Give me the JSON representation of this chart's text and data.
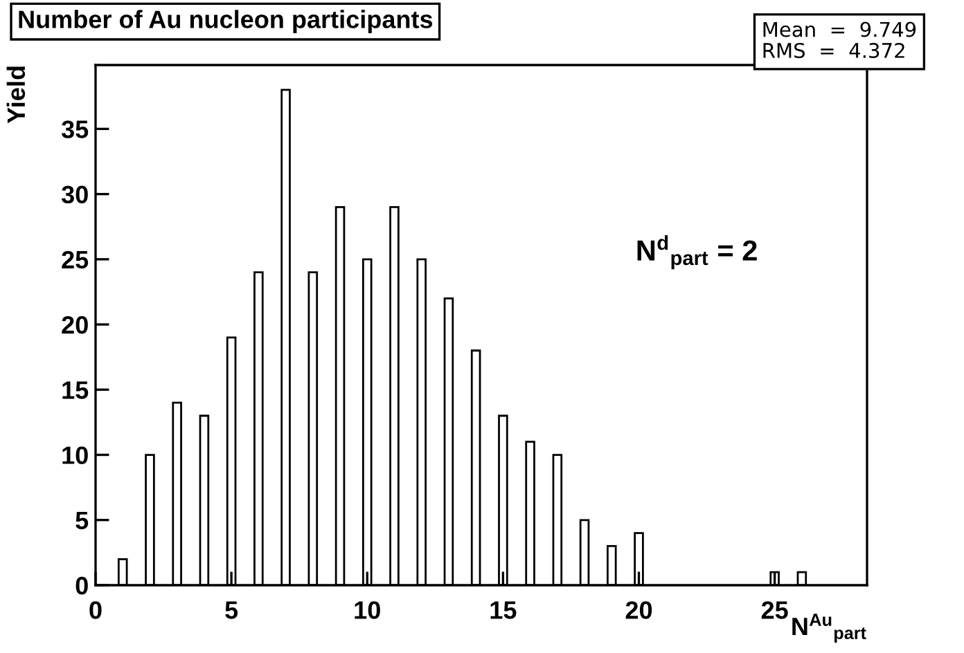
{
  "chart_data": {
    "type": "bar",
    "title": "Number of Au nucleon participants",
    "xlabel": "N$^{Au}$$_{part}$",
    "ylabel": "Yield",
    "x": [
      1,
      2,
      3,
      4,
      5,
      6,
      7,
      8,
      9,
      10,
      11,
      12,
      13,
      14,
      15,
      16,
      17,
      18,
      19,
      20,
      25,
      26
    ],
    "values": [
      2,
      10,
      14,
      13,
      19,
      24,
      38,
      24,
      29,
      25,
      29,
      25,
      22,
      18,
      13,
      11,
      10,
      5,
      3,
      4,
      1,
      1
    ],
    "color": "#000000",
    "xlim": [
      0,
      28.4
    ],
    "ylim": [
      0,
      39.9
    ],
    "xticks": [
      0,
      5,
      10,
      15,
      20,
      25
    ],
    "yticks": [
      0,
      5,
      10,
      15,
      20,
      25,
      30,
      35
    ],
    "grid": false,
    "annotations": [
      "Mean  =  9.749",
      "RMS  =  4.372",
      "N$^{d}$$_{part}$ = 2"
    ]
  }
}
